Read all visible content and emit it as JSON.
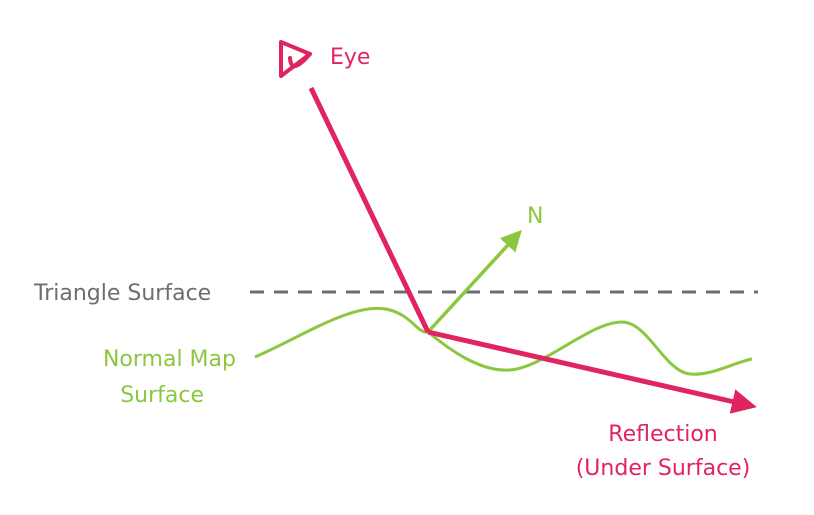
{
  "labels": {
    "eye": "Eye",
    "normal": "N",
    "triangle_surface": "Triangle Surface",
    "normal_map_line1": "Normal Map",
    "normal_map_line2": "Surface",
    "reflection_line1": "Reflection",
    "reflection_line2": "(Under Surface)"
  },
  "colors": {
    "eye_ray": "#e0245e",
    "normal_map": "#8dc63f",
    "triangle_surface": "#6d6e71"
  },
  "icons": {
    "eye": "eye-icon"
  }
}
